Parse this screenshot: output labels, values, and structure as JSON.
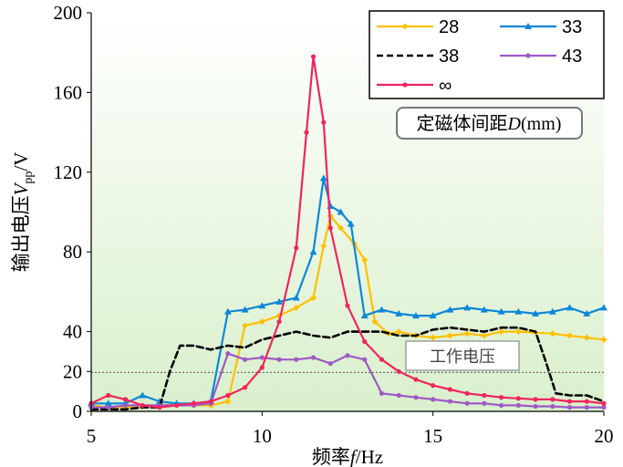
{
  "chart_data": {
    "type": "line",
    "xlabel": "频率f/Hz",
    "ylabel": "输出电压V_pp/V",
    "xlim": [
      5,
      20
    ],
    "ylim": [
      0,
      200
    ],
    "xticks": [
      5,
      10,
      15,
      20
    ],
    "yticks": [
      0,
      20,
      40,
      80,
      120,
      160,
      200
    ],
    "legend_title": "定磁体间距D(mm)",
    "legend_position": "top-right",
    "reference_line": {
      "label": "工作电压",
      "y": 19.5
    },
    "series": [
      {
        "name": "28",
        "color": "#FFC000",
        "marker": "diamond",
        "dash": "solid",
        "x": [
          5.0,
          5.5,
          6.0,
          6.5,
          7.0,
          7.5,
          8.0,
          8.5,
          9.0,
          9.5,
          10.0,
          10.5,
          11.0,
          11.5,
          11.8,
          12.0,
          12.3,
          12.7,
          13.0,
          13.3,
          13.7,
          14.0,
          14.5,
          15.0,
          15.5,
          16.0,
          16.5,
          17.0,
          17.5,
          18.0,
          18.5,
          19.0,
          19.5,
          20.0
        ],
        "y": [
          3,
          2,
          2,
          2.5,
          3,
          3.5,
          3,
          3,
          5,
          43,
          45,
          48,
          52,
          57,
          83,
          98,
          92,
          84,
          76,
          45,
          39,
          40,
          38,
          37,
          38,
          39,
          38,
          40,
          40,
          39.5,
          39,
          38,
          37,
          36
        ]
      },
      {
        "name": "33",
        "color": "#0C87D9",
        "marker": "triangle",
        "dash": "solid",
        "x": [
          5.0,
          5.5,
          6.0,
          6.5,
          7.0,
          7.5,
          8.0,
          8.5,
          9.0,
          9.5,
          10.0,
          10.5,
          11.0,
          11.5,
          11.8,
          12.0,
          12.3,
          12.6,
          13.0,
          13.5,
          14.0,
          14.5,
          15.0,
          15.5,
          16.0,
          16.5,
          17.0,
          17.5,
          18.0,
          18.5,
          19.0,
          19.5,
          20.0
        ],
        "y": [
          4,
          4,
          4,
          8,
          5,
          4,
          4,
          5,
          50,
          51,
          53,
          55,
          57,
          80,
          117,
          103,
          100,
          94,
          48,
          51,
          49,
          48,
          48,
          51,
          52,
          51,
          50,
          50,
          49,
          50,
          52,
          49,
          52
        ]
      },
      {
        "name": "38",
        "color": "#000000",
        "marker": "none",
        "dash": "dash",
        "x": [
          5.0,
          5.5,
          6.0,
          6.5,
          7.0,
          7.3,
          7.6,
          8.0,
          8.5,
          9.0,
          9.5,
          10.0,
          10.5,
          11.0,
          11.5,
          12.0,
          12.5,
          13.0,
          13.5,
          14.0,
          14.5,
          15.0,
          15.5,
          16.0,
          16.5,
          17.0,
          17.5,
          18.0,
          18.3,
          18.6,
          19.0,
          19.5,
          20.0
        ],
        "y": [
          1,
          1,
          1,
          2,
          2,
          20,
          33,
          33,
          31,
          33,
          32,
          36,
          38,
          40,
          38,
          37,
          40,
          40,
          40,
          38,
          38,
          41,
          42,
          41,
          40,
          42,
          42,
          40,
          25,
          9,
          8,
          8,
          5
        ]
      },
      {
        "name": "43",
        "color": "#9E59C6",
        "marker": "circle",
        "dash": "solid",
        "x": [
          5.0,
          5.5,
          6.0,
          6.5,
          7.0,
          7.5,
          8.0,
          8.5,
          9.0,
          9.5,
          10.0,
          10.5,
          11.0,
          11.5,
          12.0,
          12.5,
          13.0,
          13.5,
          14.0,
          14.5,
          15.0,
          15.5,
          16.0,
          16.5,
          17.0,
          17.5,
          18.0,
          18.5,
          19.0,
          19.5,
          20.0
        ],
        "y": [
          2,
          2,
          3,
          3,
          3,
          3,
          3,
          4,
          29,
          26,
          27,
          26,
          26,
          27,
          24,
          28,
          26,
          9,
          8,
          7,
          6,
          5,
          4,
          4,
          3,
          3,
          2.5,
          2.5,
          2,
          2,
          2
        ]
      },
      {
        "name": "∞",
        "color": "#F0245F",
        "marker": "circle",
        "dash": "solid",
        "x": [
          5.0,
          5.5,
          6.0,
          6.5,
          7.0,
          7.5,
          8.0,
          8.5,
          9.0,
          9.5,
          10.0,
          10.5,
          11.0,
          11.3,
          11.5,
          11.8,
          12.0,
          12.5,
          13.0,
          13.5,
          14.0,
          14.5,
          15.0,
          15.5,
          16.0,
          16.5,
          17.0,
          17.5,
          18.0,
          18.5,
          19.0,
          19.5,
          20.0
        ],
        "y": [
          4,
          8,
          6,
          3,
          2,
          3,
          4,
          5,
          8,
          12,
          22,
          45,
          82,
          140,
          178,
          145,
          92,
          53,
          35,
          26,
          20,
          16,
          13,
          11,
          9,
          8,
          7,
          6.5,
          6,
          6,
          5,
          5,
          4
        ]
      }
    ]
  }
}
